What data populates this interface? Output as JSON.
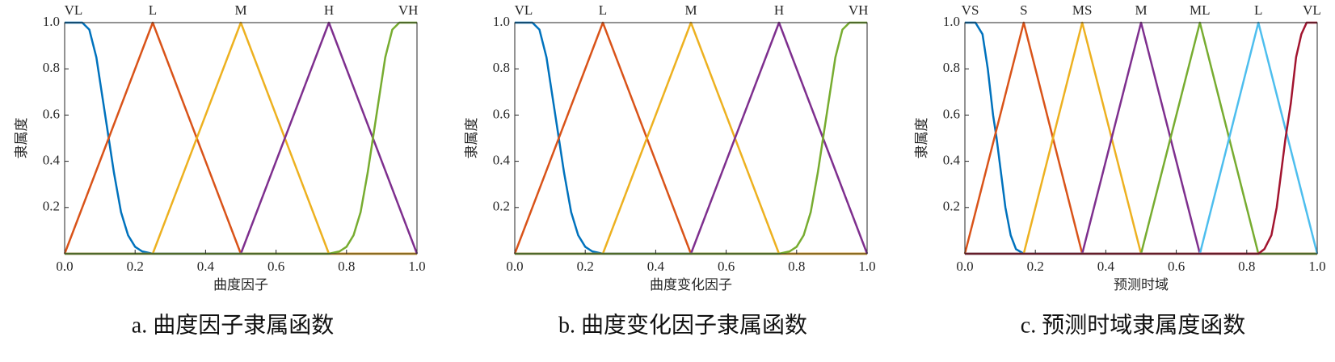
{
  "chart_data": [
    {
      "type": "line",
      "xlabel": "曲度因子",
      "ylabel": "隶属度",
      "caption": "a. 曲度因子隶属函数",
      "xlim": [
        0,
        1
      ],
      "ylim": [
        0,
        1
      ],
      "xticks": [
        {
          "value": 0,
          "label": "0.0"
        },
        0.2,
        0.4,
        0.6,
        0.8,
        {
          "value": 1,
          "label": "1.0"
        }
      ],
      "yticks": [
        0.2,
        0.4,
        0.6,
        0.8,
        {
          "value": 1,
          "label": "1.0"
        }
      ],
      "series": [
        {
          "name": "VL",
          "color": "#0072BD",
          "x": [
            0,
            0.05,
            0.07,
            0.09,
            0.11,
            0.125,
            0.14,
            0.16,
            0.18,
            0.2,
            0.22,
            0.25,
            1
          ],
          "values": [
            1,
            1,
            0.97,
            0.85,
            0.65,
            0.5,
            0.35,
            0.18,
            0.08,
            0.03,
            0.01,
            0,
            0
          ]
        },
        {
          "name": "L",
          "color": "#D95319",
          "x": [
            0,
            0.25,
            0.5,
            1
          ],
          "values": [
            0,
            1,
            0,
            0
          ]
        },
        {
          "name": "M",
          "color": "#EDB120",
          "x": [
            0,
            0.25,
            0.5,
            0.75,
            1
          ],
          "values": [
            0,
            0,
            1,
            0,
            0
          ]
        },
        {
          "name": "H",
          "color": "#7E2F8E",
          "x": [
            0,
            0.5,
            0.75,
            1
          ],
          "values": [
            0,
            0,
            1,
            0
          ]
        },
        {
          "name": "VH",
          "color": "#77AC30",
          "x": [
            0,
            0.75,
            0.78,
            0.8,
            0.82,
            0.84,
            0.86,
            0.875,
            0.89,
            0.91,
            0.93,
            0.95,
            1
          ],
          "values": [
            0,
            0,
            0.01,
            0.03,
            0.08,
            0.18,
            0.35,
            0.5,
            0.65,
            0.85,
            0.97,
            1,
            1
          ]
        }
      ]
    },
    {
      "type": "line",
      "xlabel": "曲度变化因子",
      "ylabel": "隶属度",
      "caption": "b. 曲度变化因子隶属函数",
      "xlim": [
        0,
        1
      ],
      "ylim": [
        0,
        1
      ],
      "xticks": [
        {
          "value": 0,
          "label": "0.0"
        },
        0.2,
        0.4,
        0.6,
        0.8,
        {
          "value": 1,
          "label": "1.0"
        }
      ],
      "yticks": [
        0.2,
        0.4,
        0.6,
        0.8,
        {
          "value": 1,
          "label": "1.0"
        }
      ],
      "series": [
        {
          "name": "VL",
          "color": "#0072BD",
          "x": [
            0,
            0.05,
            0.07,
            0.09,
            0.11,
            0.125,
            0.14,
            0.16,
            0.18,
            0.2,
            0.22,
            0.25,
            1
          ],
          "values": [
            1,
            1,
            0.97,
            0.85,
            0.65,
            0.5,
            0.35,
            0.18,
            0.08,
            0.03,
            0.01,
            0,
            0
          ]
        },
        {
          "name": "L",
          "color": "#D95319",
          "x": [
            0,
            0.25,
            0.5,
            1
          ],
          "values": [
            0,
            1,
            0,
            0
          ]
        },
        {
          "name": "M",
          "color": "#EDB120",
          "x": [
            0,
            0.25,
            0.5,
            0.75,
            1
          ],
          "values": [
            0,
            0,
            1,
            0,
            0
          ]
        },
        {
          "name": "H",
          "color": "#7E2F8E",
          "x": [
            0,
            0.5,
            0.75,
            1
          ],
          "values": [
            0,
            0,
            1,
            0
          ]
        },
        {
          "name": "VH",
          "color": "#77AC30",
          "x": [
            0,
            0.75,
            0.78,
            0.8,
            0.82,
            0.84,
            0.86,
            0.875,
            0.89,
            0.91,
            0.93,
            0.95,
            1
          ],
          "values": [
            0,
            0,
            0.01,
            0.03,
            0.08,
            0.18,
            0.35,
            0.5,
            0.65,
            0.85,
            0.97,
            1,
            1
          ]
        }
      ]
    },
    {
      "type": "line",
      "xlabel": "预测时域",
      "ylabel": "隶属度",
      "caption": "c. 预测时域隶属度函数",
      "xlim": [
        0,
        1
      ],
      "ylim": [
        0,
        1
      ],
      "xticks": [
        {
          "value": 0,
          "label": "0.0"
        },
        0.2,
        0.4,
        0.6,
        0.8,
        {
          "value": 1,
          "label": "1.0"
        }
      ],
      "yticks": [
        0.2,
        0.4,
        0.6,
        0.8,
        {
          "value": 1,
          "label": "1.0"
        }
      ],
      "series": [
        {
          "name": "VS",
          "color": "#0072BD",
          "x": [
            0,
            0.03,
            0.05,
            0.065,
            0.08,
            0.09,
            0.1,
            0.115,
            0.13,
            0.145,
            0.167,
            1
          ],
          "values": [
            1,
            1,
            0.95,
            0.8,
            0.6,
            0.5,
            0.38,
            0.2,
            0.08,
            0.02,
            0,
            0
          ]
        },
        {
          "name": "S",
          "color": "#D95319",
          "x": [
            0,
            0.167,
            0.333,
            1
          ],
          "values": [
            0,
            1,
            0,
            0
          ]
        },
        {
          "name": "MS",
          "color": "#EDB120",
          "x": [
            0,
            0.167,
            0.333,
            0.5,
            1
          ],
          "values": [
            0,
            0,
            1,
            0,
            0
          ]
        },
        {
          "name": "M",
          "color": "#7E2F8E",
          "x": [
            0,
            0.333,
            0.5,
            0.667,
            1
          ],
          "values": [
            0,
            0,
            1,
            0,
            0
          ]
        },
        {
          "name": "ML",
          "color": "#77AC30",
          "x": [
            0,
            0.5,
            0.667,
            0.833,
            1
          ],
          "values": [
            0,
            0,
            1,
            0,
            0
          ]
        },
        {
          "name": "L",
          "color": "#4DBEEE",
          "x": [
            0,
            0.667,
            0.833,
            1
          ],
          "values": [
            0,
            0,
            1,
            0
          ]
        },
        {
          "name": "VL",
          "color": "#A2142F",
          "x": [
            0,
            0.833,
            0.85,
            0.87,
            0.885,
            0.9,
            0.91,
            0.925,
            0.94,
            0.955,
            0.97,
            1
          ],
          "values": [
            0,
            0,
            0.02,
            0.08,
            0.2,
            0.38,
            0.5,
            0.65,
            0.85,
            0.95,
            1,
            1
          ]
        }
      ]
    }
  ]
}
